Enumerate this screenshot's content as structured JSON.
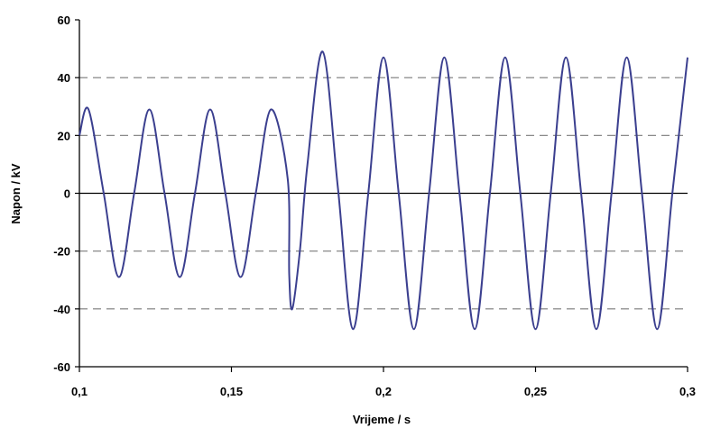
{
  "chart_data": {
    "type": "line",
    "title": "",
    "xlabel": "Vrijeme / s",
    "ylabel": "Napon / kV",
    "xlim": [
      0.1,
      0.3
    ],
    "ylim": [
      -60,
      60
    ],
    "x_ticks": [
      0.1,
      0.15,
      0.2,
      0.25,
      0.3
    ],
    "x_tick_labels": [
      "0,1",
      "0,15",
      "0,2",
      "0,25",
      "0,3"
    ],
    "y_ticks": [
      -60,
      -40,
      -20,
      0,
      20,
      40,
      60
    ],
    "y_tick_labels": [
      "-60",
      "-40",
      "-20",
      "0",
      "20",
      "40",
      "60"
    ],
    "grid": "dashed horizontal lines at y ticks",
    "legend": "none",
    "colors": {
      "line": "#3b3f8f",
      "grid": "#7a7a7a",
      "axis": "#000000"
    },
    "series": [
      {
        "x": [
          0.1,
          0.103,
          0.108,
          0.113,
          0.118,
          0.123,
          0.128,
          0.133,
          0.138,
          0.143,
          0.148,
          0.153,
          0.158,
          0.163,
          0.1685,
          0.169,
          0.17,
          0.1725,
          0.175,
          0.18,
          0.185,
          0.19,
          0.195,
          0.2,
          0.205,
          0.21,
          0.215,
          0.22,
          0.225,
          0.23,
          0.235,
          0.24,
          0.245,
          0.25,
          0.255,
          0.26,
          0.265,
          0.27,
          0.275,
          0.28,
          0.285,
          0.29,
          0.295,
          0.3
        ],
        "y": [
          20,
          29,
          0,
          -29,
          0,
          29,
          0,
          -29,
          0,
          29,
          0,
          -29,
          0,
          29,
          5,
          -28,
          -40,
          -20,
          10,
          49,
          2,
          -47,
          0,
          47,
          0,
          -47,
          0,
          47,
          0,
          -47,
          0,
          47,
          0,
          -47,
          0,
          47,
          0,
          -47,
          0,
          47,
          0,
          -47,
          0,
          47
        ]
      }
    ]
  }
}
